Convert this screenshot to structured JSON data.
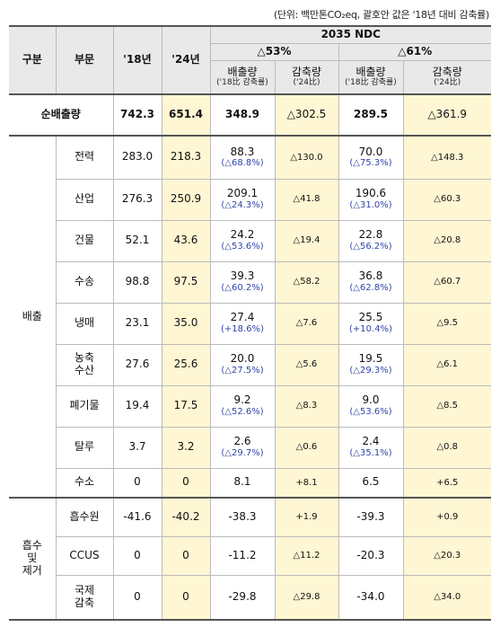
{
  "unit_note": "(단위: 백만톤CO₂eq, 괄호안 값은 '18년 대비 감축률)",
  "header": {
    "col_gubun": "구분",
    "col_bumun": "부문",
    "col_18": "'18년",
    "col_24": "'24년",
    "ndc_title": "2035 NDC",
    "scenario_53": "△53%",
    "scenario_61": "△61%",
    "emission_label": "배출량",
    "emission_sub": "('18比 감축률)",
    "reduction_label": "감축량",
    "reduction_sub": "('24比)"
  },
  "net": {
    "label": "순배출량",
    "y18": "742.3",
    "y24": "651.4",
    "e53": "348.9",
    "r53": "△302.5",
    "e61": "289.5",
    "r61": "△361.9"
  },
  "groups": {
    "emission": "배출",
    "absorb": [
      "흡수",
      "및",
      "제거"
    ]
  },
  "emission_rows": [
    {
      "name": [
        "전력"
      ],
      "y18": "283.0",
      "y24": "218.3",
      "e53": "88.3",
      "p53": "(△68.8%)",
      "r53": "△130.0",
      "e61": "70.0",
      "p61": "(△75.3%)",
      "r61": "△148.3"
    },
    {
      "name": [
        "산업"
      ],
      "y18": "276.3",
      "y24": "250.9",
      "e53": "209.1",
      "p53": "(△24.3%)",
      "r53": "△41.8",
      "e61": "190.6",
      "p61": "(△31.0%)",
      "r61": "△60.3"
    },
    {
      "name": [
        "건물"
      ],
      "y18": "52.1",
      "y24": "43.6",
      "e53": "24.2",
      "p53": "(△53.6%)",
      "r53": "△19.4",
      "e61": "22.8",
      "p61": "(△56.2%)",
      "r61": "△20.8"
    },
    {
      "name": [
        "수송"
      ],
      "y18": "98.8",
      "y24": "97.5",
      "e53": "39.3",
      "p53": "(△60.2%)",
      "r53": "△58.2",
      "e61": "36.8",
      "p61": "(△62.8%)",
      "r61": "△60.7"
    },
    {
      "name": [
        "냉매"
      ],
      "y18": "23.1",
      "y24": "35.0",
      "e53": "27.4",
      "p53": "(+18.6%)",
      "r53": "△7.6",
      "e61": "25.5",
      "p61": "(+10.4%)",
      "r61": "△9.5"
    },
    {
      "name": [
        "농축",
        "수산"
      ],
      "y18": "27.6",
      "y24": "25.6",
      "e53": "20.0",
      "p53": "(△27.5%)",
      "r53": "△5.6",
      "e61": "19.5",
      "p61": "(△29.3%)",
      "r61": "△6.1"
    },
    {
      "name": [
        "폐기물"
      ],
      "y18": "19.4",
      "y24": "17.5",
      "e53": "9.2",
      "p53": "(△52.6%)",
      "r53": "△8.3",
      "e61": "9.0",
      "p61": "(△53.6%)",
      "r61": "△8.5"
    },
    {
      "name": [
        "탈루"
      ],
      "y18": "3.7",
      "y24": "3.2",
      "e53": "2.6",
      "p53": "(△29.7%)",
      "r53": "△0.6",
      "e61": "2.4",
      "p61": "(△35.1%)",
      "r61": "△0.8"
    },
    {
      "name": [
        "수소"
      ],
      "y18": "0",
      "y24": "0",
      "e53": "8.1",
      "p53": "",
      "r53": "+8.1",
      "e61": "6.5",
      "p61": "",
      "r61": "+6.5"
    }
  ],
  "absorb_rows": [
    {
      "name": [
        "흡수원"
      ],
      "y18": "-41.6",
      "y24": "-40.2",
      "e53": "-38.3",
      "r53": "+1.9",
      "e61": "-39.3",
      "r61": "+0.9"
    },
    {
      "name": [
        "CCUS"
      ],
      "y18": "0",
      "y24": "0",
      "e53": "-11.2",
      "r53": "△11.2",
      "e61": "-20.3",
      "r61": "△20.3"
    },
    {
      "name": [
        "국제",
        "감축"
      ],
      "y18": "0",
      "y24": "0",
      "e53": "-29.8",
      "r53": "△29.8",
      "e61": "-34.0",
      "r61": "△34.0"
    }
  ]
}
